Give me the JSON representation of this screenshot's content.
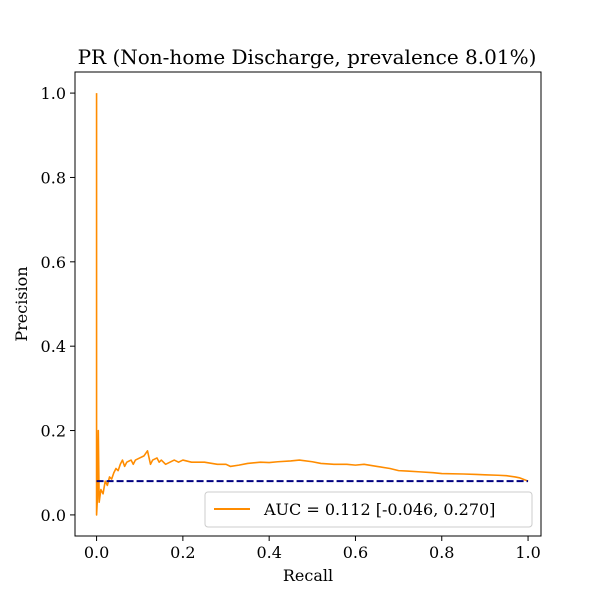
{
  "chart_data": {
    "type": "line",
    "title": "PR (Non-home Discharge, prevalence 8.01%)",
    "xlabel": "Recall",
    "ylabel": "Precision",
    "xlim": [
      -0.05,
      1.03
    ],
    "ylim": [
      -0.05,
      1.05
    ],
    "x_ticks": [
      0.0,
      0.2,
      0.4,
      0.6,
      0.8,
      1.0
    ],
    "x_tick_labels": [
      "0.0",
      "0.2",
      "0.4",
      "0.6",
      "0.8",
      "1.0"
    ],
    "y_ticks": [
      0.0,
      0.2,
      0.4,
      0.6,
      0.8,
      1.0
    ],
    "y_tick_labels": [
      "0.0",
      "0.2",
      "0.4",
      "0.6",
      "0.8",
      "1.0"
    ],
    "grid": false,
    "legend_position": "lower-right",
    "series": [
      {
        "name": "AUC = 0.112 [-0.046, 0.270]",
        "color": "#ff8c00",
        "style": "solid",
        "points": [
          [
            0.0,
            1.0
          ],
          [
            0.0,
            0.0
          ],
          [
            0.002,
            0.04
          ],
          [
            0.004,
            0.2
          ],
          [
            0.006,
            0.03
          ],
          [
            0.01,
            0.06
          ],
          [
            0.015,
            0.05
          ],
          [
            0.02,
            0.08
          ],
          [
            0.025,
            0.07
          ],
          [
            0.03,
            0.09
          ],
          [
            0.035,
            0.085
          ],
          [
            0.04,
            0.1
          ],
          [
            0.045,
            0.11
          ],
          [
            0.05,
            0.105
          ],
          [
            0.055,
            0.12
          ],
          [
            0.06,
            0.13
          ],
          [
            0.065,
            0.115
          ],
          [
            0.07,
            0.125
          ],
          [
            0.08,
            0.13
          ],
          [
            0.085,
            0.12
          ],
          [
            0.09,
            0.13
          ],
          [
            0.1,
            0.135
          ],
          [
            0.11,
            0.14
          ],
          [
            0.118,
            0.152
          ],
          [
            0.125,
            0.12
          ],
          [
            0.13,
            0.13
          ],
          [
            0.14,
            0.135
          ],
          [
            0.145,
            0.125
          ],
          [
            0.15,
            0.13
          ],
          [
            0.16,
            0.12
          ],
          [
            0.17,
            0.125
          ],
          [
            0.18,
            0.13
          ],
          [
            0.19,
            0.125
          ],
          [
            0.2,
            0.13
          ],
          [
            0.22,
            0.125
          ],
          [
            0.25,
            0.125
          ],
          [
            0.28,
            0.12
          ],
          [
            0.3,
            0.12
          ],
          [
            0.31,
            0.115
          ],
          [
            0.33,
            0.118
          ],
          [
            0.35,
            0.122
          ],
          [
            0.38,
            0.125
          ],
          [
            0.4,
            0.124
          ],
          [
            0.42,
            0.126
          ],
          [
            0.45,
            0.128
          ],
          [
            0.47,
            0.13
          ],
          [
            0.5,
            0.126
          ],
          [
            0.52,
            0.122
          ],
          [
            0.55,
            0.12
          ],
          [
            0.58,
            0.12
          ],
          [
            0.6,
            0.118
          ],
          [
            0.62,
            0.12
          ],
          [
            0.65,
            0.115
          ],
          [
            0.68,
            0.11
          ],
          [
            0.7,
            0.105
          ],
          [
            0.72,
            0.104
          ],
          [
            0.75,
            0.102
          ],
          [
            0.78,
            0.1
          ],
          [
            0.8,
            0.098
          ],
          [
            0.85,
            0.097
          ],
          [
            0.88,
            0.096
          ],
          [
            0.9,
            0.095
          ],
          [
            0.93,
            0.094
          ],
          [
            0.95,
            0.093
          ],
          [
            0.97,
            0.09
          ],
          [
            0.98,
            0.088
          ],
          [
            1.0,
            0.0801
          ]
        ]
      },
      {
        "name": "",
        "color": "#000080",
        "style": "dashed",
        "points": [
          [
            0.0,
            0.0801
          ],
          [
            1.0,
            0.0801
          ]
        ]
      }
    ]
  }
}
